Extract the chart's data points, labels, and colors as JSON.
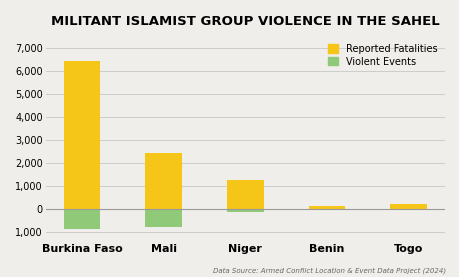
{
  "title": "MILITANT ISLAMIST GROUP VIOLENCE IN THE SAHEL",
  "categories": [
    "Burkina Faso",
    "Mali",
    "Niger",
    "Benin",
    "Togo"
  ],
  "fatalities": [
    6400,
    2400,
    1250,
    100,
    200
  ],
  "violent_events": [
    -900,
    -800,
    -150,
    -70,
    -30
  ],
  "fatalities_color": "#F5C518",
  "events_color": "#90C978",
  "background_color": "#F0EEEA",
  "ylim_min": -1400,
  "ylim_max": 7500,
  "yticks": [
    -1000,
    0,
    1000,
    2000,
    3000,
    4000,
    5000,
    6000,
    7000
  ],
  "ytick_labels": [
    "1,000",
    "0",
    "1,000",
    "2,000",
    "3,000",
    "4,000",
    "5,000",
    "6,000",
    "7,000"
  ],
  "legend_fatalities": "Reported Fatalities",
  "legend_events": "Violent Events",
  "source_text": "Data Source: Armed Conflict Location & Event Data Project (2024)",
  "title_fontsize": 9.5,
  "tick_fontsize": 7,
  "label_fontsize": 8,
  "source_fontsize": 5
}
